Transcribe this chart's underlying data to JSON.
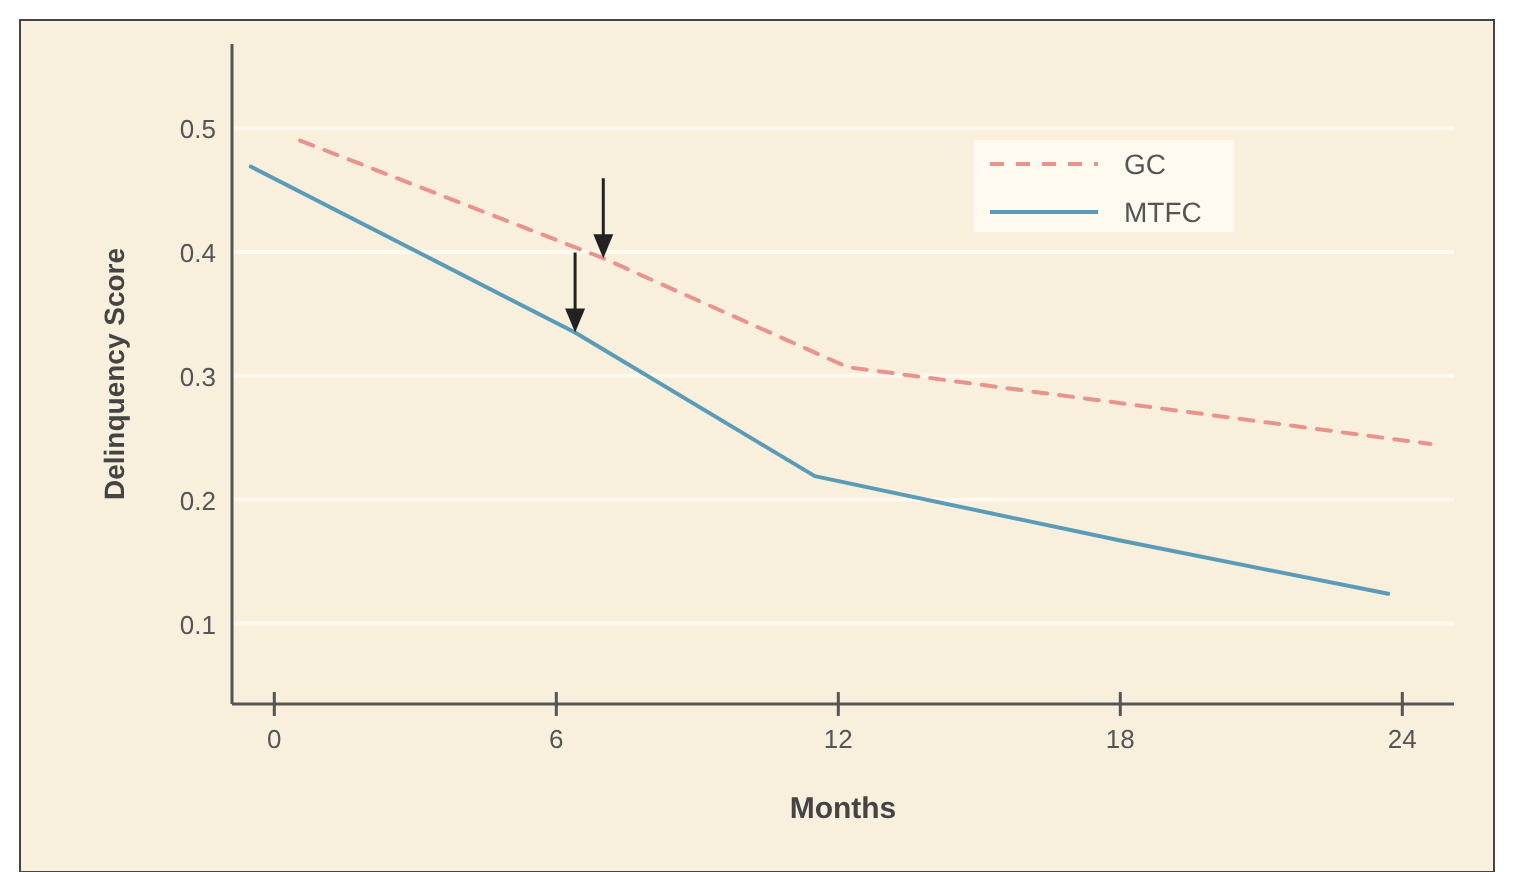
{
  "chart_data": {
    "type": "line",
    "xlabel": "Months",
    "ylabel": "Delinquency Score",
    "xlim": [
      -0.9,
      25.1
    ],
    "xticks": [
      0,
      6,
      12,
      18,
      24
    ],
    "ylim": [
      0.035,
      0.568
    ],
    "yticks": [
      0.1,
      0.2,
      0.3,
      0.4,
      0.5
    ],
    "grid": "y",
    "legend": "top right",
    "series": [
      {
        "name": "GC",
        "color": "#e8948c",
        "line_style": "dashed",
        "x": [
          0.55,
          7.0,
          12.2,
          24.6
        ],
        "values": [
          0.49,
          0.395,
          0.307,
          0.245
        ]
      },
      {
        "name": "MTFC",
        "color": "#5a9bb8",
        "line_style": "solid",
        "x": [
          -0.5,
          6.4,
          11.5,
          18,
          23.7
        ],
        "values": [
          0.469,
          0.335,
          0.219,
          0.167,
          0.124
        ]
      }
    ]
  }
}
